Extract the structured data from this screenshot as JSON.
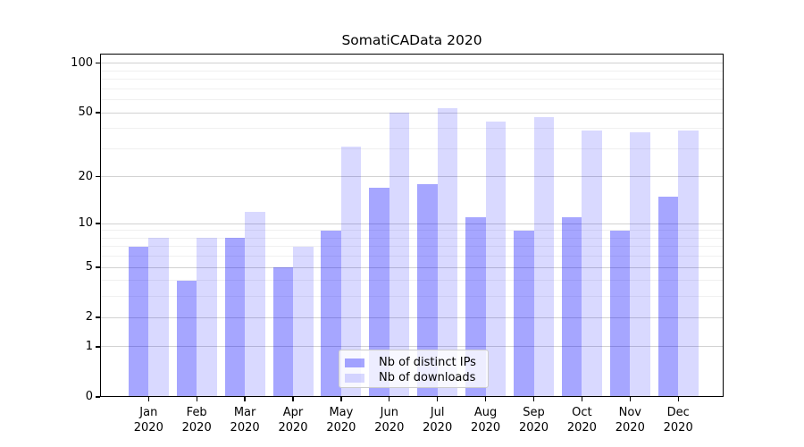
{
  "title": "SomatiCAData 2020",
  "legend": {
    "items": [
      {
        "label": "Nb of distinct IPs",
        "color": "rgba(0,0,255,0.35)",
        "hex_on_white": "#a6a6ff"
      },
      {
        "label": "Nb of downloads",
        "color": "rgba(0,0,255,0.15)",
        "hex_on_white": "#d9d9ff"
      }
    ]
  },
  "chart_data": {
    "type": "bar",
    "title": "SomatiCAData 2020",
    "categories": [
      "Jan 2020",
      "Feb 2020",
      "Mar 2020",
      "Apr 2020",
      "May 2020",
      "Jun 2020",
      "Jul 2020",
      "Aug 2020",
      "Sep 2020",
      "Oct 2020",
      "Nov 2020",
      "Dec 2020"
    ],
    "categories_display": [
      {
        "name": "Jan",
        "year": "2020"
      },
      {
        "name": "Feb",
        "year": "2020"
      },
      {
        "name": "Mar",
        "year": "2020"
      },
      {
        "name": "Apr",
        "year": "2020"
      },
      {
        "name": "May",
        "year": "2020"
      },
      {
        "name": "Jun",
        "year": "2020"
      },
      {
        "name": "Jul",
        "year": "2020"
      },
      {
        "name": "Aug",
        "year": "2020"
      },
      {
        "name": "Sep",
        "year": "2020"
      },
      {
        "name": "Oct",
        "year": "2020"
      },
      {
        "name": "Nov",
        "year": "2020"
      },
      {
        "name": "Dec",
        "year": "2020"
      }
    ],
    "series": [
      {
        "name": "Nb of distinct IPs",
        "color": "rgba(0,0,255,0.35)",
        "values": [
          7,
          4,
          8,
          5,
          9,
          17,
          18,
          11,
          9,
          11,
          9,
          15
        ]
      },
      {
        "name": "Nb of downloads",
        "color": "rgba(0,0,255,0.15)",
        "values": [
          8,
          8,
          12,
          7,
          31,
          50,
          53,
          44,
          47,
          39,
          38,
          39
        ]
      }
    ],
    "xlabel": "",
    "ylabel": "",
    "yscale": "log1p",
    "ylim": [
      0,
      115
    ],
    "yticks": [
      0,
      1,
      2,
      5,
      10,
      20,
      50,
      100
    ],
    "ytick_labels": [
      "0",
      "1",
      "2",
      "5",
      "10",
      "20",
      "50",
      "100"
    ],
    "yticks_minor": [
      3,
      4,
      6,
      7,
      8,
      9,
      30,
      40,
      60,
      70,
      80,
      90
    ],
    "grid": "on",
    "legend_position": "lower center"
  }
}
